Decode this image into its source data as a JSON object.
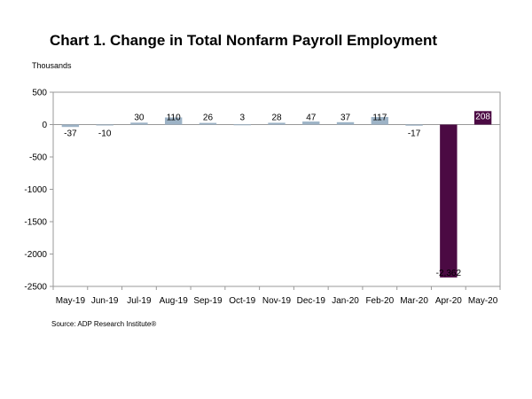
{
  "chart_data": {
    "type": "bar",
    "title": "Chart 1. Change in Total Nonfarm Payroll Employment",
    "ylabel": "Thousands",
    "source": "Source: ADP Research Institute®",
    "categories": [
      "May-19",
      "Jun-19",
      "Jul-19",
      "Aug-19",
      "Sep-19",
      "Oct-19",
      "Nov-19",
      "Dec-19",
      "Jan-20",
      "Feb-20",
      "Mar-20",
      "Apr-20",
      "May-20"
    ],
    "values": [
      -37,
      -10,
      30,
      110,
      26,
      3,
      28,
      47,
      37,
      117,
      -17,
      -2362,
      208
    ],
    "data_labels": [
      "-37",
      "-10",
      "30",
      "110",
      "26",
      "3",
      "28",
      "47",
      "37",
      "117",
      "-17",
      "-2,362",
      "208"
    ],
    "ylim": [
      -2500,
      500
    ],
    "yticks": [
      500,
      0,
      -500,
      -1000,
      -1500,
      -2000,
      -2500
    ],
    "ytick_labels": [
      "500",
      "0",
      "-500",
      "-1000",
      "-1500",
      "-2000",
      "-2500"
    ],
    "grid": false,
    "legend": "none",
    "colors": {
      "bar_default": "#9db3c6",
      "bar_highlight": "#4b0a43",
      "highlight_label_text": "#ffffff",
      "axis": "#999999"
    },
    "highlight_categories": [
      "Apr-20",
      "May-20"
    ]
  }
}
